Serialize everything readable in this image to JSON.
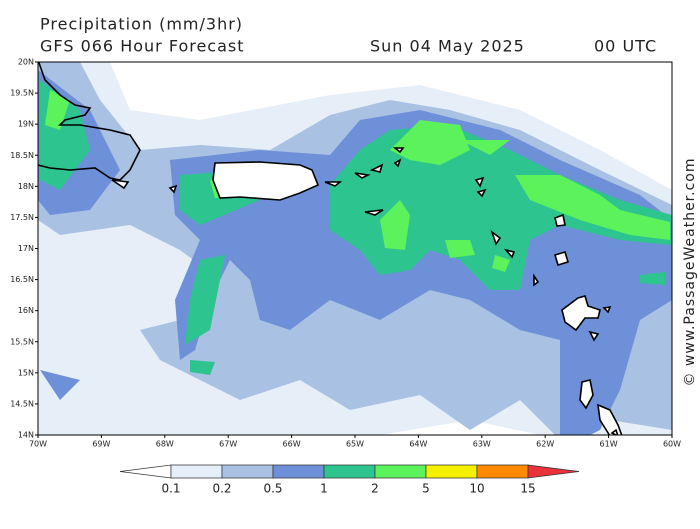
{
  "header": {
    "title": "Precipitation (mm/3hr)",
    "model": "GFS 066 Hour Forecast",
    "date": "Sun 04 May 2025",
    "time": "00 UTC"
  },
  "map": {
    "lat_labels": [
      "20N",
      "19.5N",
      "19N",
      "18.5N",
      "18N",
      "17.5N",
      "17N",
      "16.5N",
      "16N",
      "15.5N",
      "15N",
      "14.5N",
      "14N"
    ],
    "lon_labels": [
      "70W",
      "69W",
      "68W",
      "67W",
      "66W",
      "65W",
      "64W",
      "63W",
      "62W",
      "61W",
      "60W"
    ]
  },
  "legend": {
    "levels": [
      0.1,
      0.2,
      0.5,
      1,
      2,
      5,
      10,
      15
    ],
    "colors": [
      "#ffffff",
      "#e6eef8",
      "#a9c1e2",
      "#6d90d8",
      "#2ec48f",
      "#5cf25c",
      "#f4f000",
      "#ff8a00",
      "#e8323c"
    ]
  },
  "watermark": "© www.PassageWeather.com"
}
